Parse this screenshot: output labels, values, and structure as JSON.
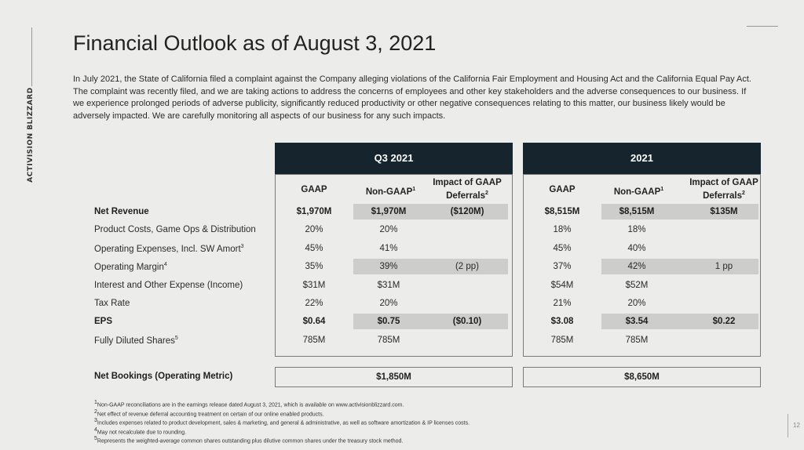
{
  "logo_text": "ACTIVISION BLIZZARD",
  "title": "Financial Outlook as of August 3, 2021",
  "intro": "In July 2021, the State of California filed a complaint against the Company alleging violations of the California Fair Employment and Housing Act and the California Equal Pay Act. The complaint was recently filed, and we are taking actions to address the concerns of employees and other key stakeholders and the adverse consequences to our business. If we experience prolonged periods of adverse publicity, significantly reduced productivity or other negative consequences relating to this matter, our business likely would be adversely impacted. We are carefully monitoring all aspects of our business for any such impacts.",
  "periods": [
    "Q3 2021",
    "2021"
  ],
  "subheaders": {
    "gaap": "GAAP",
    "nongaap": "Non-GAAP",
    "nongaap_note": "1",
    "impact_line1": "Impact of GAAP",
    "impact_line2": "Deferrals",
    "impact_note": "2"
  },
  "rows": [
    {
      "label": "Net Revenue",
      "note": "",
      "bold": true,
      "shaded": true,
      "q3": [
        "$1,970M",
        "$1,970M",
        "($120M)"
      ],
      "fy": [
        "$8,515M",
        "$8,515M",
        "$135M"
      ]
    },
    {
      "label": "Product Costs, Game Ops & Distribution",
      "note": "",
      "bold": false,
      "shaded": false,
      "q3": [
        "20%",
        "20%",
        ""
      ],
      "fy": [
        "18%",
        "18%",
        ""
      ]
    },
    {
      "label": "Operating Expenses, Incl. SW Amort",
      "note": "3",
      "bold": false,
      "shaded": false,
      "q3": [
        "45%",
        "41%",
        ""
      ],
      "fy": [
        "45%",
        "40%",
        ""
      ]
    },
    {
      "label": "Operating Margin",
      "note": "4",
      "bold": false,
      "shaded": true,
      "q3": [
        "35%",
        "39%",
        "(2 pp)"
      ],
      "fy": [
        "37%",
        "42%",
        "1 pp"
      ]
    },
    {
      "label": "Interest and Other Expense (Income)",
      "note": "",
      "bold": false,
      "shaded": false,
      "q3": [
        "$31M",
        "$31M",
        ""
      ],
      "fy": [
        "$54M",
        "$52M",
        ""
      ]
    },
    {
      "label": "Tax Rate",
      "note": "",
      "bold": false,
      "shaded": false,
      "q3": [
        "22%",
        "20%",
        ""
      ],
      "fy": [
        "21%",
        "20%",
        ""
      ]
    },
    {
      "label": "EPS",
      "note": "",
      "bold": true,
      "shaded": true,
      "q3": [
        "$0.64",
        "$0.75",
        "($0.10)"
      ],
      "fy": [
        "$3.08",
        "$3.54",
        "$0.22"
      ]
    },
    {
      "label": "Fully Diluted Shares",
      "note": "5",
      "bold": false,
      "shaded": false,
      "q3": [
        "785M",
        "785M",
        ""
      ],
      "fy": [
        "785M",
        "785M",
        ""
      ]
    }
  ],
  "net_bookings": {
    "label": "Net Bookings (Operating Metric)",
    "q3": "$1,850M",
    "fy": "$8,650M"
  },
  "footnotes": [
    {
      "n": "1",
      "text": "Non-GAAP reconciliations are in the earnings release dated August 3, 2021, which is available on www.activisionblizzard.com."
    },
    {
      "n": "2",
      "text": "Net effect of revenue deferral accounting treatment on certain of our online enabled products."
    },
    {
      "n": "3",
      "text": "Includes expenses related to product development, sales & marketing, and general & administrative, as well as software amortization & IP licenses costs."
    },
    {
      "n": "4",
      "text": "May not recalculate due to rounding."
    },
    {
      "n": "5",
      "text": "Represents the weighted-average common shares outstanding plus dilutive common shares under the treasury stock method."
    }
  ],
  "page_number": "12"
}
